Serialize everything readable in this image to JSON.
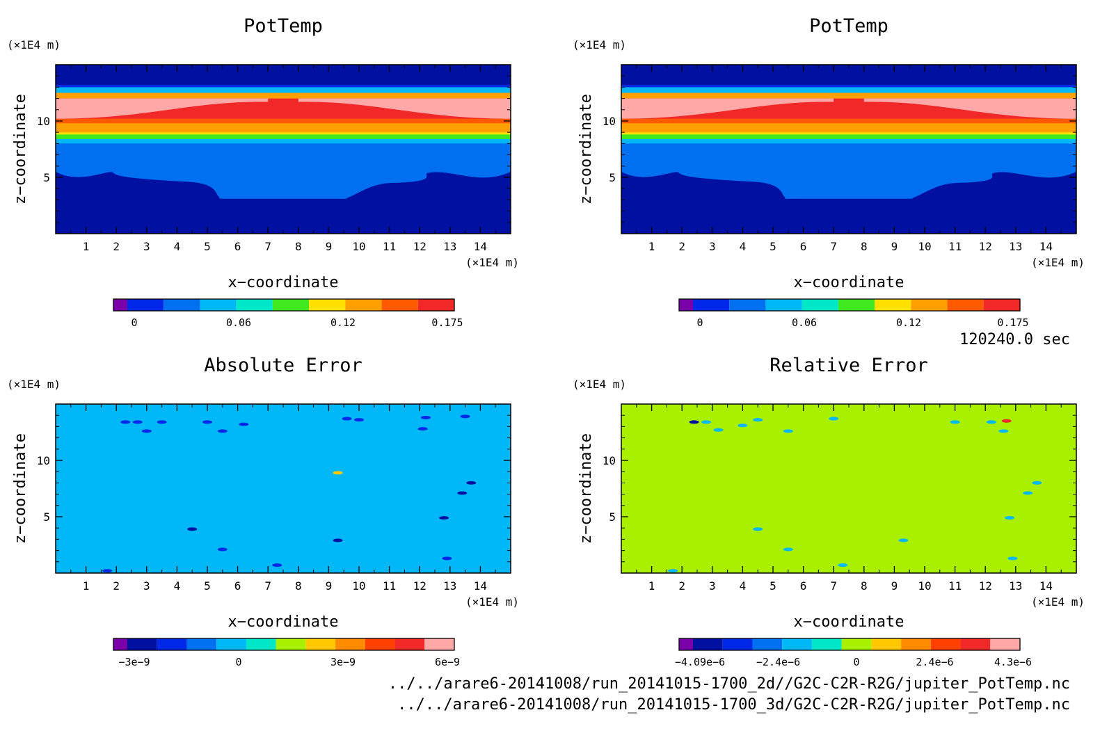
{
  "time_label": "120240.0 sec",
  "file_paths": [
    "../../arare6-20141008/run_20141015-1700_2d//G2C-C2R-R2G/jupiter_PotTemp.nc",
    "../../arare6-20141008/run_20141015-1700_3d/G2C-C2R-R2G/jupiter_PotTemp.nc"
  ],
  "colors": {
    "potential_temperature_levels": [
      "#7a00aa",
      "#0010a0",
      "#0028e8",
      "#0070f0",
      "#00b8f8",
      "#00e6c8",
      "#40e820",
      "#ffe000",
      "#ffa000",
      "#ff5a00",
      "#f02828",
      "#ffa8a8"
    ],
    "error_levels": [
      "#7a00aa",
      "#0010a0",
      "#0028e8",
      "#0070f0",
      "#00b8f8",
      "#00e6c8",
      "#a8f000",
      "#ffc800",
      "#ff8c00",
      "#ff4000",
      "#f02828",
      "#ffa8a8"
    ]
  },
  "chart_data": [
    {
      "type": "heatmap",
      "title": "PotTemp",
      "xlabel": "x−coordinate",
      "ylabel": "z−coordinate",
      "x_unit": "(×1E4 m)",
      "y_unit": "(×1E4 m)",
      "xlim": [
        0,
        15
      ],
      "ylim": [
        0,
        15
      ],
      "x_ticks": [
        1,
        2,
        3,
        4,
        5,
        6,
        7,
        8,
        9,
        10,
        11,
        12,
        13,
        14
      ],
      "y_ticks": [
        5,
        10
      ],
      "colorbar": {
        "ticks": [
          "0",
          "0.06",
          "0.12",
          "0.175"
        ],
        "levels": 10
      },
      "field_summary": [
        {
          "z_from": 0,
          "z_to": 4.5,
          "level": "deep blue",
          "value": -0.02
        },
        {
          "z_from": 4.5,
          "z_to": 7.5,
          "level": "medium blue",
          "value": 0.02
        },
        {
          "z_from": 7.5,
          "z_to": 8.5,
          "level": "green/yellow",
          "value": 0.08
        },
        {
          "z_from": 8.5,
          "z_to": 12.5,
          "level": "red/pink",
          "value": 0.16
        },
        {
          "z_from": 12.5,
          "z_to": 15,
          "level": "deep blue",
          "value": -0.02
        }
      ],
      "grid": false
    },
    {
      "type": "heatmap",
      "title": "PotTemp",
      "xlabel": "x−coordinate",
      "ylabel": "z−coordinate",
      "x_unit": "(×1E4 m)",
      "y_unit": "(×1E4 m)",
      "xlim": [
        0,
        15
      ],
      "ylim": [
        0,
        15
      ],
      "x_ticks": [
        1,
        2,
        3,
        4,
        5,
        6,
        7,
        8,
        9,
        10,
        11,
        12,
        13,
        14
      ],
      "y_ticks": [
        5,
        10
      ],
      "colorbar": {
        "ticks": [
          "0",
          "0.06",
          "0.12",
          "0.175"
        ],
        "levels": 10
      },
      "field_summary": [
        {
          "z_from": 0,
          "z_to": 4.5,
          "level": "deep blue",
          "value": -0.02
        },
        {
          "z_from": 4.5,
          "z_to": 7.5,
          "level": "medium blue",
          "value": 0.02
        },
        {
          "z_from": 7.5,
          "z_to": 8.5,
          "level": "green/yellow",
          "value": 0.08
        },
        {
          "z_from": 8.5,
          "z_to": 12.5,
          "level": "red/pink",
          "value": 0.16
        },
        {
          "z_from": 12.5,
          "z_to": 15,
          "level": "deep blue",
          "value": -0.02
        }
      ],
      "grid": false
    },
    {
      "type": "heatmap",
      "title": "Absolute Error",
      "xlabel": "x−coordinate",
      "ylabel": "z−coordinate",
      "x_unit": "(×1E4 m)",
      "y_unit": "(×1E4 m)",
      "xlim": [
        0,
        15
      ],
      "ylim": [
        0,
        15
      ],
      "x_ticks": [
        1,
        2,
        3,
        4,
        5,
        6,
        7,
        8,
        9,
        10,
        11,
        12,
        13,
        14
      ],
      "y_ticks": [
        5,
        10
      ],
      "colorbar": {
        "ticks": [
          "−3e−9",
          "0",
          "3e−9",
          "6e−9"
        ],
        "levels": 12
      },
      "background_value": 0,
      "grid": false
    },
    {
      "type": "heatmap",
      "title": "Relative Error",
      "xlabel": "x−coordinate",
      "ylabel": "z−coordinate",
      "x_unit": "(×1E4 m)",
      "y_unit": "(×1E4 m)",
      "xlim": [
        0,
        15
      ],
      "ylim": [
        0,
        15
      ],
      "x_ticks": [
        1,
        2,
        3,
        4,
        5,
        6,
        7,
        8,
        9,
        10,
        11,
        12,
        13,
        14
      ],
      "y_ticks": [
        5,
        10
      ],
      "colorbar": {
        "ticks": [
          "−4.09e−6",
          "−2.4e−6",
          "0",
          "2.4e−6",
          "4.3e−6"
        ],
        "levels": 12
      },
      "background_value": 0,
      "grid": false
    }
  ]
}
